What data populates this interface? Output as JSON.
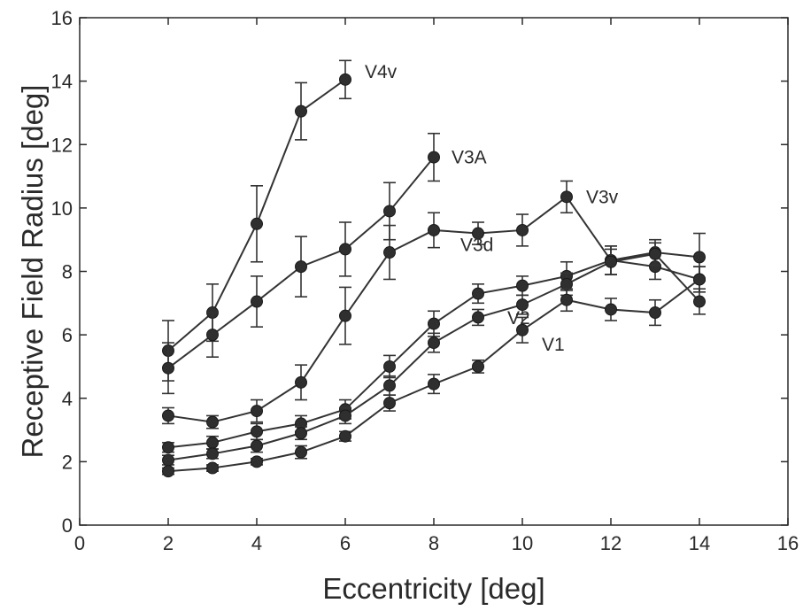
{
  "chart_data": {
    "type": "line",
    "title": "",
    "xlabel": "Eccentricity [deg]",
    "ylabel": "Receptive Field Radius [deg]",
    "xlim": [
      0,
      16
    ],
    "ylim": [
      0,
      16
    ],
    "xticks": [
      "0",
      "2",
      "4",
      "6",
      "8",
      "10",
      "12",
      "14",
      "16"
    ],
    "yticks": [
      "0",
      "2",
      "4",
      "6",
      "8",
      "10",
      "12",
      "14",
      "16"
    ],
    "grid": false,
    "legend": "none (series labeled inline)",
    "marker": "circle",
    "error_bars": true,
    "series": [
      {
        "name": "V4v",
        "x": [
          2,
          3,
          4,
          5,
          6
        ],
        "y": [
          5.5,
          6.7,
          9.5,
          13.05,
          14.05
        ],
        "err": [
          0.95,
          0.9,
          1.2,
          0.9,
          0.6
        ]
      },
      {
        "name": "V3A",
        "x": [
          2,
          3,
          4,
          5,
          6,
          7,
          8
        ],
        "y": [
          4.95,
          6.0,
          7.05,
          8.15,
          8.7,
          9.9,
          11.6
        ],
        "err": [
          0.8,
          0.7,
          0.8,
          0.95,
          0.85,
          0.9,
          0.75
        ]
      },
      {
        "name": "V3v",
        "x": [
          2,
          3,
          4,
          5,
          6,
          7,
          8,
          9,
          10,
          11,
          12,
          13,
          14
        ],
        "y": [
          3.45,
          3.25,
          3.6,
          4.5,
          6.6,
          8.6,
          9.3,
          9.2,
          9.3,
          10.35,
          8.35,
          8.15,
          7.75
        ],
        "err": [
          0.25,
          0.2,
          0.35,
          0.55,
          0.9,
          0.85,
          0.55,
          0.35,
          0.5,
          0.5,
          0.45,
          0.4,
          0.4
        ]
      },
      {
        "name": "V3d",
        "x": [
          2,
          3,
          4,
          5,
          6,
          7,
          8,
          9,
          10,
          11,
          12,
          13,
          14
        ],
        "y": [
          2.45,
          2.6,
          2.95,
          3.2,
          3.65,
          5.0,
          6.35,
          7.3,
          7.55,
          7.85,
          8.35,
          8.6,
          8.45
        ],
        "err": [
          0.15,
          0.2,
          0.25,
          0.25,
          0.3,
          0.35,
          0.4,
          0.3,
          0.3,
          0.45,
          0.45,
          0.4,
          0.75
        ]
      },
      {
        "name": "V2",
        "x": [
          2,
          3,
          4,
          5,
          6,
          7,
          8,
          9,
          10,
          11,
          12,
          13,
          14
        ],
        "y": [
          2.05,
          2.25,
          2.5,
          2.9,
          3.45,
          4.4,
          5.75,
          6.55,
          6.95,
          7.6,
          8.3,
          8.55,
          7.05
        ],
        "err": [
          0.15,
          0.15,
          0.2,
          0.2,
          0.25,
          0.3,
          0.3,
          0.25,
          0.3,
          0.35,
          0.4,
          0.35,
          0.4
        ]
      },
      {
        "name": "V1",
        "x": [
          2,
          3,
          4,
          5,
          6,
          7,
          8,
          9,
          10,
          11,
          12,
          13,
          14
        ],
        "y": [
          1.7,
          1.8,
          2.0,
          2.3,
          2.8,
          3.85,
          4.45,
          5.0,
          6.15,
          7.1,
          6.8,
          6.7,
          7.75
        ],
        "err": [
          0.1,
          0.1,
          0.1,
          0.2,
          0.15,
          0.25,
          0.3,
          0.2,
          0.4,
          0.35,
          0.35,
          0.4,
          0.4
        ]
      }
    ]
  }
}
